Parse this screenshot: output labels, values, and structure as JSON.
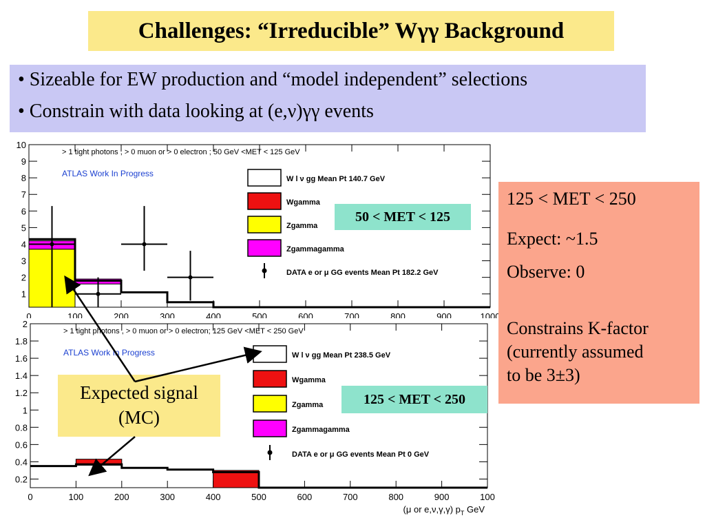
{
  "title": "Challenges: “Irreducible” Wγγ Background",
  "bullets": [
    "• Sizeable for EW production and “model independent” selections",
    "• Constrain with data looking at (e,ν)γγ events"
  ],
  "plots": [
    {
      "header": "> 1 tight photons , > 0 muon or > 0 electron ; 50 GeV <MET < 125 GeV",
      "atlas": "ATLAS Work In Progress",
      "met_label": "50 < MET < 125",
      "legend": [
        {
          "label": "W l ν gg Mean Pt 140.7 GeV",
          "color": "#ffffff"
        },
        {
          "label": "Wgamma",
          "color": "#ee1111"
        },
        {
          "label": "Zgamma",
          "color": "#ffff00"
        },
        {
          "label": "Zgammagamma",
          "color": "#ff00ff"
        },
        {
          "label": "DATA e or μ GG events Mean Pt 182.2 GeV",
          "color": "#000000"
        }
      ],
      "x_ticks": [
        "0",
        "100",
        "200",
        "300",
        "400",
        "500",
        "600",
        "700",
        "800",
        "900",
        "1000"
      ],
      "y_ticks": [
        "1",
        "2",
        "3",
        "4",
        "5",
        "6",
        "7",
        "8",
        "9",
        "10"
      ]
    },
    {
      "header": "> 1 tight photons , > 0 muon or > 0 electron; 125 GeV <MET < 250 GeV",
      "atlas": "ATLAS Work In Progress",
      "met_label": "125 < MET < 250",
      "legend": [
        {
          "label": "W l ν gg Mean Pt 238.5 GeV",
          "color": "#ffffff"
        },
        {
          "label": "Wgamma",
          "color": "#ee1111"
        },
        {
          "label": "Zgamma",
          "color": "#ffff00"
        },
        {
          "label": "Zgammagamma",
          "color": "#ff00ff"
        },
        {
          "label": "DATA e or μ GG events Mean Pt  0 GeV",
          "color": "#000000"
        }
      ],
      "x_ticks": [
        "0",
        "100",
        "200",
        "300",
        "400",
        "500",
        "600",
        "700",
        "800",
        "900",
        "100"
      ],
      "y_ticks": [
        "0.2",
        "0.4",
        "0.6",
        "0.8",
        "1",
        "1.2",
        "1.4",
        "1.6",
        "1.8",
        "2"
      ],
      "x_title": "(μ or e,ν,γ,γ) p",
      "x_title_sub": "T",
      "x_title_unit": "GeV"
    }
  ],
  "info": {
    "title": "125 < MET < 250",
    "expect": "Expect: ~1.5",
    "observe": "Observe: 0",
    "constrain": [
      "Constrains K-factor",
      "(currently assumed",
      "to be 3±3)"
    ]
  },
  "signal_box": [
    "Expected signal",
    "(MC)"
  ]
}
